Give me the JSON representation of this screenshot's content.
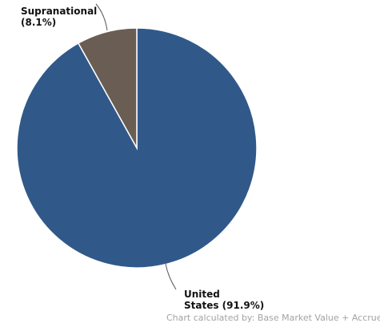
{
  "chart_data": {
    "type": "pie",
    "slices": [
      {
        "label": "United States",
        "display_lines": [
          "United",
          "States (91.9%)"
        ],
        "percent_text": "91.9%",
        "value": 91.9,
        "color": "#30598a"
      },
      {
        "label": "Supranational",
        "display_lines": [
          "Supranational",
          "(8.1%)"
        ],
        "percent_text": "8.1%",
        "value": 8.1,
        "color": "#6a5d54"
      }
    ],
    "start": "12 o'clock",
    "direction": "clockwise",
    "slice_border_color": "#ffffff",
    "legend": "none"
  },
  "footnote": "Chart calculated by: Base Market Value + Accrued"
}
